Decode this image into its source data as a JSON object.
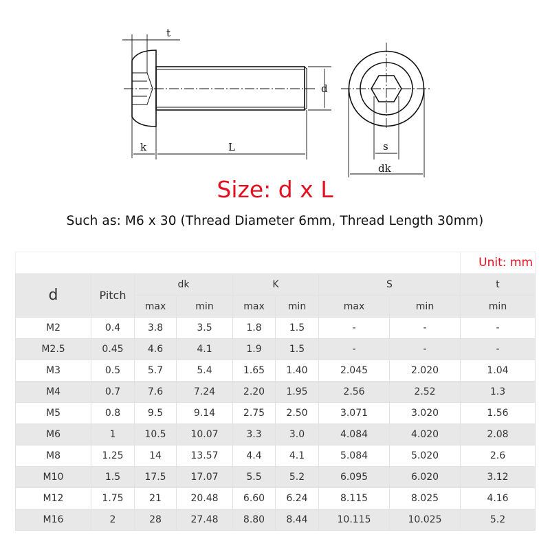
{
  "drawing": {
    "labels": {
      "t": "t",
      "d": "d",
      "k": "k",
      "L": "L",
      "s": "s",
      "dk": "dk"
    }
  },
  "title": "Size: d x L",
  "subtitle": "Such as: M6 x 30 (Thread Diameter 6mm, Thread Length 30mm)",
  "colors": {
    "accent": "#e5101f",
    "row_alt": "#e8e8e8"
  },
  "table": {
    "unit": "Unit: mm",
    "headers": {
      "d": "d",
      "pitch": "Pitch",
      "dk": "dk",
      "k": "K",
      "s": "S",
      "t": "t"
    },
    "subheaders": [
      "max",
      "min",
      "max",
      "min",
      "max",
      "min",
      "min"
    ],
    "rows": [
      [
        "M2",
        "0.4",
        "3.8",
        "3.5",
        "1.8",
        "1.5",
        "-",
        "-",
        "-"
      ],
      [
        "M2.5",
        "0.45",
        "4.6",
        "4.1",
        "1.9",
        "1.5",
        "-",
        "-",
        "-"
      ],
      [
        "M3",
        "0.5",
        "5.7",
        "5.4",
        "1.65",
        "1.40",
        "2.045",
        "2.020",
        "1.04"
      ],
      [
        "M4",
        "0.7",
        "7.6",
        "7.24",
        "2.20",
        "1.95",
        "2.56",
        "2.52",
        "1.3"
      ],
      [
        "M5",
        "0.8",
        "9.5",
        "9.14",
        "2.75",
        "2.50",
        "3.071",
        "3.020",
        "1.56"
      ],
      [
        "M6",
        "1",
        "10.5",
        "10.07",
        "3.3",
        "3.0",
        "4.084",
        "4.020",
        "2.08"
      ],
      [
        "M8",
        "1.25",
        "14",
        "13.57",
        "4.4",
        "4.1",
        "5.084",
        "5.020",
        "2.6"
      ],
      [
        "M10",
        "1.5",
        "17.5",
        "17.07",
        "5.5",
        "5.2",
        "6.095",
        "6.020",
        "3.12"
      ],
      [
        "M12",
        "1.75",
        "21",
        "20.48",
        "6.60",
        "6.24",
        "8.115",
        "8.025",
        "4.16"
      ],
      [
        "M16",
        "2",
        "28",
        "27.48",
        "8.80",
        "8.44",
        "10.115",
        "10.025",
        "5.2"
      ]
    ]
  }
}
